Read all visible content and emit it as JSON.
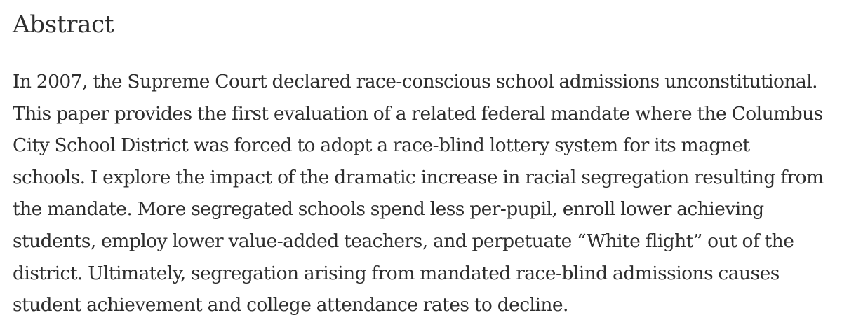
{
  "section": {
    "heading": "Abstract",
    "lines": [
      "In 2007, the Supreme Court declared race-conscious school admissions unconstitutional.",
      "This paper provides the first evaluation of a related federal mandate where the Columbus",
      "City School District was forced to adopt a race-blind lottery system for its magnet",
      "schools. I explore the impact of the dramatic increase in racial segregation resulting from",
      "the mandate. More segregated schools spend less per-pupil, enroll lower achieving",
      "students, employ lower value-added teachers, and perpetuate “White flight” out of the",
      "district. Ultimately, segregation arising from mandated race-blind admissions causes",
      "student achievement and college attendance rates to decline."
    ]
  }
}
